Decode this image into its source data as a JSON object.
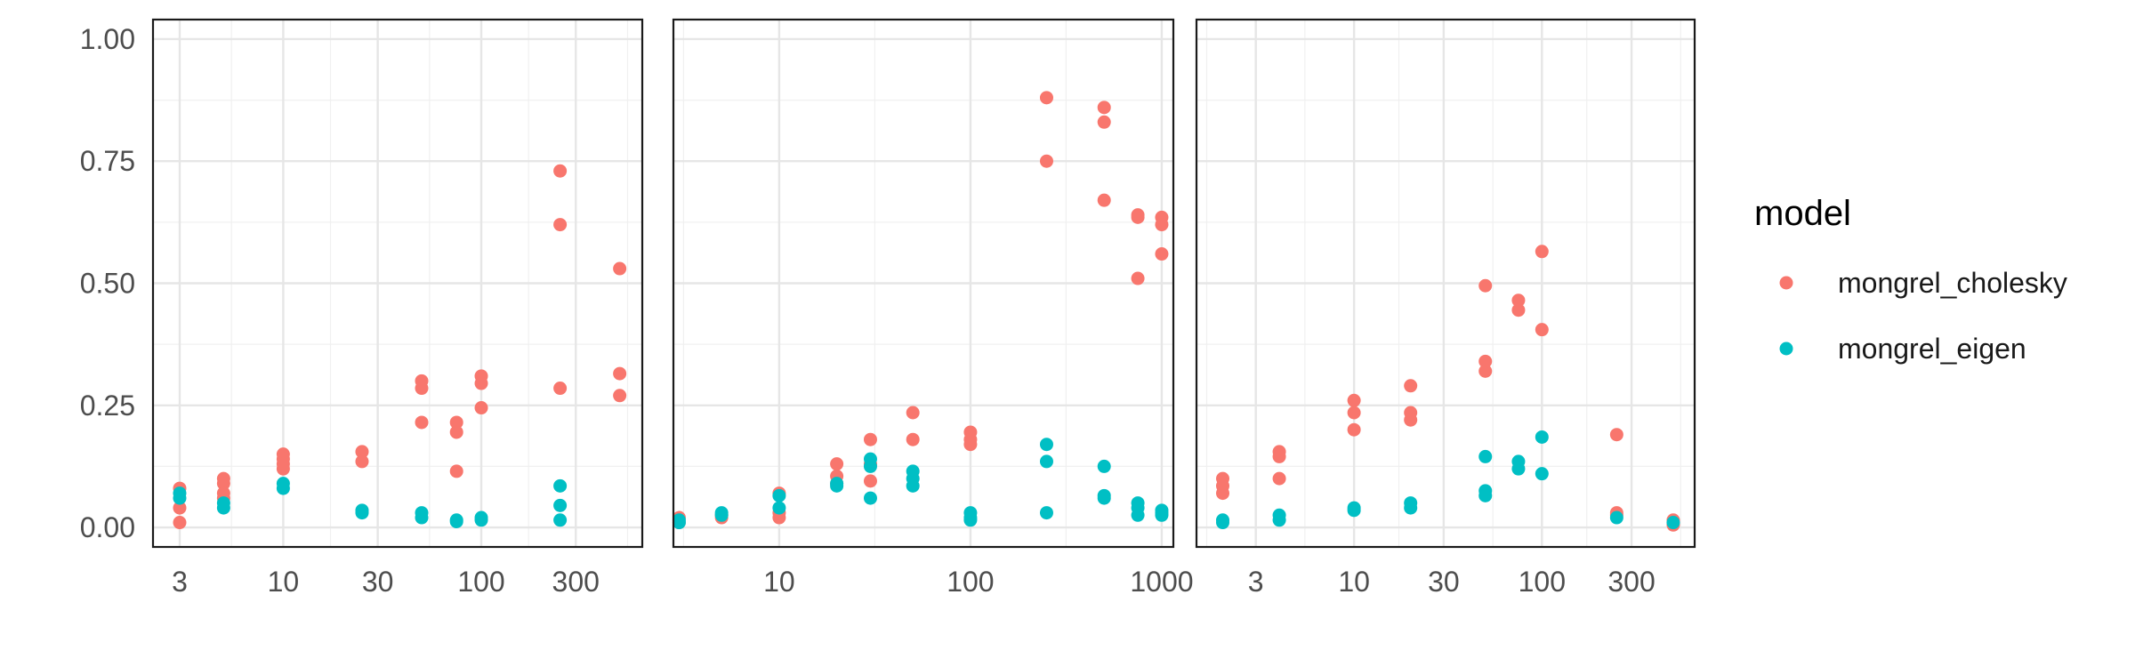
{
  "chart_data": {
    "type": "scatter",
    "x_scale": "log",
    "y_range": [
      -0.04,
      1.04
    ],
    "y_ticks": [
      0,
      0.25,
      0.5,
      0.75,
      1.0
    ],
    "y_tick_labels": [
      "0.00",
      "0.25",
      "0.50",
      "0.75",
      "1.00"
    ],
    "grid": true,
    "legend_placement": "right",
    "legend": {
      "title": "model",
      "entries": [
        {
          "name": "mongrel_cholesky",
          "color": "#F8766D"
        },
        {
          "name": "mongrel_eigen",
          "color": "#00BFC4"
        }
      ]
    },
    "panels": [
      {
        "x_range": [
          2.2,
          650
        ],
        "x_ticks": [
          3,
          10,
          30,
          100,
          300
        ],
        "x_tick_labels": [
          "3",
          "10",
          "30",
          "100",
          "300"
        ],
        "series": [
          {
            "name": "mongrel_cholesky",
            "color": "#F8766D",
            "points": [
              [
                3,
                0.08
              ],
              [
                3,
                0.04
              ],
              [
                3,
                0.01
              ],
              [
                5,
                0.1
              ],
              [
                5,
                0.09
              ],
              [
                5,
                0.07
              ],
              [
                5,
                0.06
              ],
              [
                10,
                0.15
              ],
              [
                10,
                0.14
              ],
              [
                10,
                0.13
              ],
              [
                10,
                0.12
              ],
              [
                25,
                0.155
              ],
              [
                25,
                0.135
              ],
              [
                50,
                0.3
              ],
              [
                50,
                0.285
              ],
              [
                50,
                0.215
              ],
              [
                75,
                0.215
              ],
              [
                75,
                0.195
              ],
              [
                75,
                0.115
              ],
              [
                100,
                0.31
              ],
              [
                100,
                0.295
              ],
              [
                100,
                0.245
              ],
              [
                250,
                0.73
              ],
              [
                250,
                0.62
              ],
              [
                250,
                0.285
              ],
              [
                500,
                0.53
              ],
              [
                500,
                0.315
              ],
              [
                500,
                0.27
              ]
            ]
          },
          {
            "name": "mongrel_eigen",
            "color": "#00BFC4",
            "points": [
              [
                3,
                0.07
              ],
              [
                3,
                0.06
              ],
              [
                5,
                0.05
              ],
              [
                5,
                0.04
              ],
              [
                10,
                0.09
              ],
              [
                10,
                0.08
              ],
              [
                25,
                0.035
              ],
              [
                25,
                0.03
              ],
              [
                50,
                0.03
              ],
              [
                50,
                0.02
              ],
              [
                75,
                0.015
              ],
              [
                75,
                0.012
              ],
              [
                100,
                0.02
              ],
              [
                100,
                0.015
              ],
              [
                250,
                0.085
              ],
              [
                250,
                0.045
              ],
              [
                250,
                0.015
              ]
            ]
          }
        ]
      },
      {
        "x_range": [
          2.8,
          1150
        ],
        "x_ticks": [
          10,
          100,
          1000
        ],
        "x_tick_labels": [
          "10",
          "100",
          "1000"
        ],
        "series": [
          {
            "name": "mongrel_cholesky",
            "color": "#F8766D",
            "points": [
              [
                3,
                0.02
              ],
              [
                3,
                0.01
              ],
              [
                5,
                0.025
              ],
              [
                5,
                0.02
              ],
              [
                10,
                0.07
              ],
              [
                10,
                0.03
              ],
              [
                10,
                0.02
              ],
              [
                20,
                0.13
              ],
              [
                20,
                0.105
              ],
              [
                20,
                0.09
              ],
              [
                30,
                0.18
              ],
              [
                30,
                0.13
              ],
              [
                30,
                0.095
              ],
              [
                50,
                0.235
              ],
              [
                50,
                0.18
              ],
              [
                100,
                0.195
              ],
              [
                100,
                0.18
              ],
              [
                100,
                0.17
              ],
              [
                250,
                0.88
              ],
              [
                250,
                0.75
              ],
              [
                500,
                0.86
              ],
              [
                500,
                0.83
              ],
              [
                500,
                0.67
              ],
              [
                750,
                0.64
              ],
              [
                750,
                0.635
              ],
              [
                750,
                0.51
              ],
              [
                1000,
                0.635
              ],
              [
                1000,
                0.62
              ],
              [
                1000,
                0.56
              ]
            ]
          },
          {
            "name": "mongrel_eigen",
            "color": "#00BFC4",
            "points": [
              [
                3,
                0.015
              ],
              [
                3,
                0.01
              ],
              [
                5,
                0.03
              ],
              [
                5,
                0.025
              ],
              [
                10,
                0.065
              ],
              [
                10,
                0.04
              ],
              [
                20,
                0.09
              ],
              [
                20,
                0.085
              ],
              [
                30,
                0.14
              ],
              [
                30,
                0.125
              ],
              [
                30,
                0.06
              ],
              [
                50,
                0.115
              ],
              [
                50,
                0.1
              ],
              [
                50,
                0.085
              ],
              [
                100,
                0.03
              ],
              [
                100,
                0.02
              ],
              [
                100,
                0.015
              ],
              [
                250,
                0.17
              ],
              [
                250,
                0.135
              ],
              [
                250,
                0.03
              ],
              [
                500,
                0.125
              ],
              [
                500,
                0.065
              ],
              [
                500,
                0.06
              ],
              [
                750,
                0.05
              ],
              [
                750,
                0.04
              ],
              [
                750,
                0.025
              ],
              [
                1000,
                0.035
              ],
              [
                1000,
                0.03
              ],
              [
                1000,
                0.025
              ]
            ]
          }
        ]
      },
      {
        "x_range": [
          1.45,
          650
        ],
        "x_ticks": [
          3,
          10,
          30,
          100,
          300
        ],
        "x_tick_labels": [
          "3",
          "10",
          "30",
          "100",
          "300"
        ],
        "series": [
          {
            "name": "mongrel_cholesky",
            "color": "#F8766D",
            "points": [
              [
                2,
                0.1
              ],
              [
                2,
                0.085
              ],
              [
                2,
                0.07
              ],
              [
                4,
                0.155
              ],
              [
                4,
                0.145
              ],
              [
                4,
                0.1
              ],
              [
                10,
                0.26
              ],
              [
                10,
                0.235
              ],
              [
                10,
                0.2
              ],
              [
                20,
                0.29
              ],
              [
                20,
                0.235
              ],
              [
                20,
                0.22
              ],
              [
                50,
                0.495
              ],
              [
                50,
                0.34
              ],
              [
                50,
                0.32
              ],
              [
                75,
                0.465
              ],
              [
                75,
                0.445
              ],
              [
                100,
                0.565
              ],
              [
                100,
                0.405
              ],
              [
                250,
                0.19
              ],
              [
                250,
                0.03
              ],
              [
                250,
                0.025
              ],
              [
                500,
                0.015
              ],
              [
                500,
                0.01
              ],
              [
                500,
                0.005
              ]
            ]
          },
          {
            "name": "mongrel_eigen",
            "color": "#00BFC4",
            "points": [
              [
                2,
                0.015
              ],
              [
                2,
                0.01
              ],
              [
                4,
                0.025
              ],
              [
                4,
                0.015
              ],
              [
                10,
                0.04
              ],
              [
                10,
                0.035
              ],
              [
                20,
                0.05
              ],
              [
                20,
                0.04
              ],
              [
                50,
                0.145
              ],
              [
                50,
                0.075
              ],
              [
                50,
                0.065
              ],
              [
                75,
                0.135
              ],
              [
                75,
                0.12
              ],
              [
                100,
                0.185
              ],
              [
                100,
                0.11
              ],
              [
                250,
                0.02
              ],
              [
                500,
                0.01
              ]
            ]
          }
        ]
      }
    ]
  }
}
